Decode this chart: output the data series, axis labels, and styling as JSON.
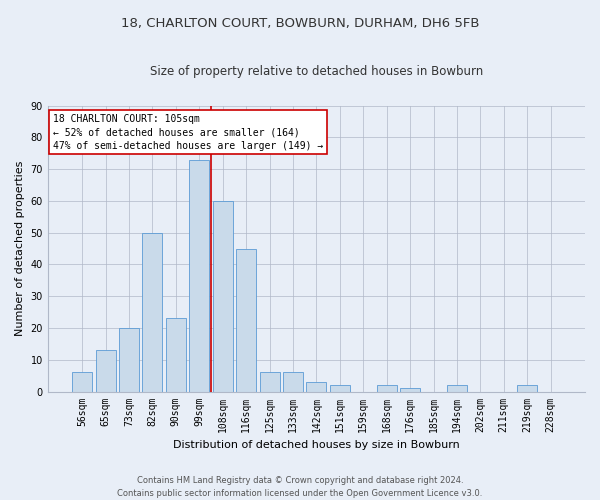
{
  "title1": "18, CHARLTON COURT, BOWBURN, DURHAM, DH6 5FB",
  "title2": "Size of property relative to detached houses in Bowburn",
  "xlabel": "Distribution of detached houses by size in Bowburn",
  "ylabel": "Number of detached properties",
  "bar_labels": [
    "56sqm",
    "65sqm",
    "73sqm",
    "82sqm",
    "90sqm",
    "99sqm",
    "108sqm",
    "116sqm",
    "125sqm",
    "133sqm",
    "142sqm",
    "151sqm",
    "159sqm",
    "168sqm",
    "176sqm",
    "185sqm",
    "194sqm",
    "202sqm",
    "211sqm",
    "219sqm",
    "228sqm"
  ],
  "bar_values": [
    6,
    13,
    20,
    50,
    23,
    73,
    60,
    45,
    6,
    6,
    3,
    2,
    0,
    2,
    1,
    0,
    2,
    0,
    0,
    2,
    0
  ],
  "bar_color": "#c9daea",
  "bar_edge_color": "#5b9bd5",
  "vline_x": 5.5,
  "vline_color": "#cc0000",
  "annotation_text": "18 CHARLTON COURT: 105sqm\n← 52% of detached houses are smaller (164)\n47% of semi-detached houses are larger (149) →",
  "annotation_box_color": "#ffffff",
  "annotation_box_edge": "#cc0000",
  "ylim": [
    0,
    90
  ],
  "yticks": [
    0,
    10,
    20,
    30,
    40,
    50,
    60,
    70,
    80,
    90
  ],
  "footer1": "Contains HM Land Registry data © Crown copyright and database right 2024.",
  "footer2": "Contains public sector information licensed under the Open Government Licence v3.0.",
  "bg_color": "#e8eef7",
  "plot_bg_color": "#e8eef7",
  "title1_fontsize": 9.5,
  "title2_fontsize": 8.5,
  "xlabel_fontsize": 8,
  "ylabel_fontsize": 8,
  "tick_fontsize": 7,
  "annot_fontsize": 7,
  "footer_fontsize": 6
}
